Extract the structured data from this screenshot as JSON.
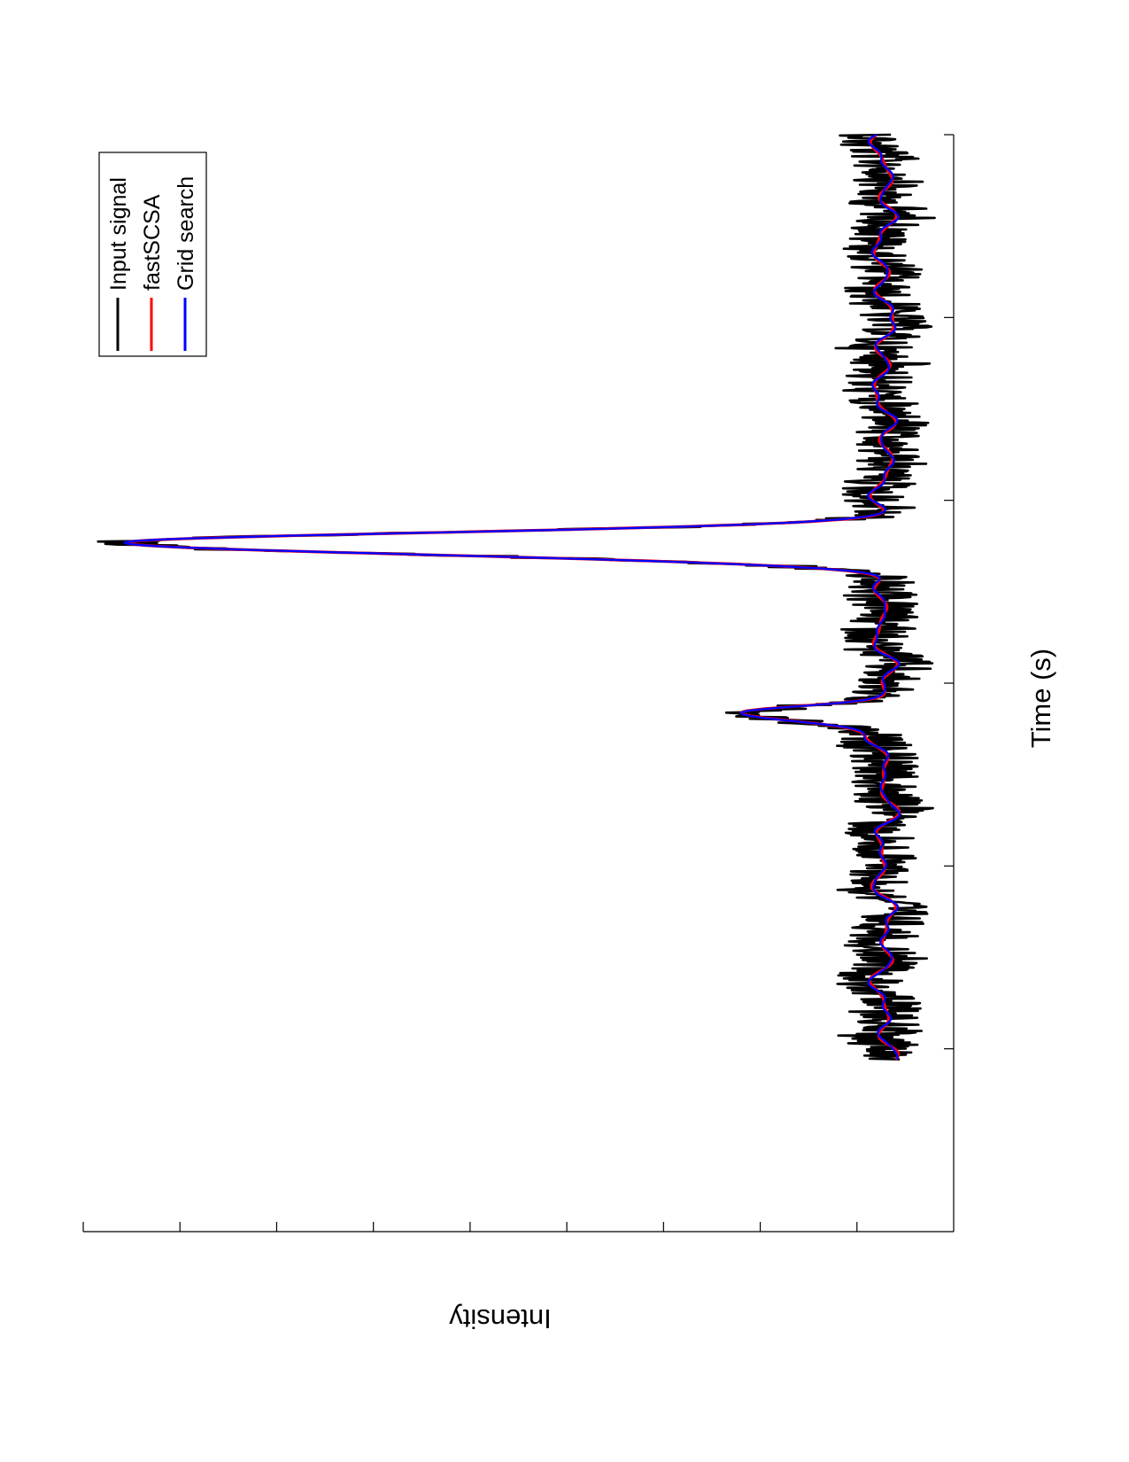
{
  "chart_data": {
    "type": "line",
    "orientation": "rotated-90",
    "title": "",
    "xlabel": "Time (s)",
    "ylabel": "Intensity",
    "xlim": [
      0,
      1
    ],
    "ylim": [
      0,
      1
    ],
    "grid": false,
    "legend_placement": "top-right (rotated)",
    "x_ticks_count": 6,
    "y_ticks_count": 9,
    "series": [
      {
        "name": "Input signal",
        "color": "#000000",
        "role": "noisy"
      },
      {
        "name": "fastSCSA",
        "color": "#ff0000",
        "role": "smooth"
      },
      {
        "name": "Grid search",
        "color": "#0000ff",
        "role": "smooth"
      }
    ],
    "baseline_level": 0.08,
    "noise_amplitude": 0.03,
    "peaks": [
      {
        "x": 0.372,
        "height": 0.87,
        "sigma_left": 0.009,
        "sigma_right": 0.011
      },
      {
        "x": 0.527,
        "height": 0.17,
        "sigma_left": 0.006,
        "sigma_right": 0.008
      }
    ],
    "signal_x_end": 0.843
  }
}
